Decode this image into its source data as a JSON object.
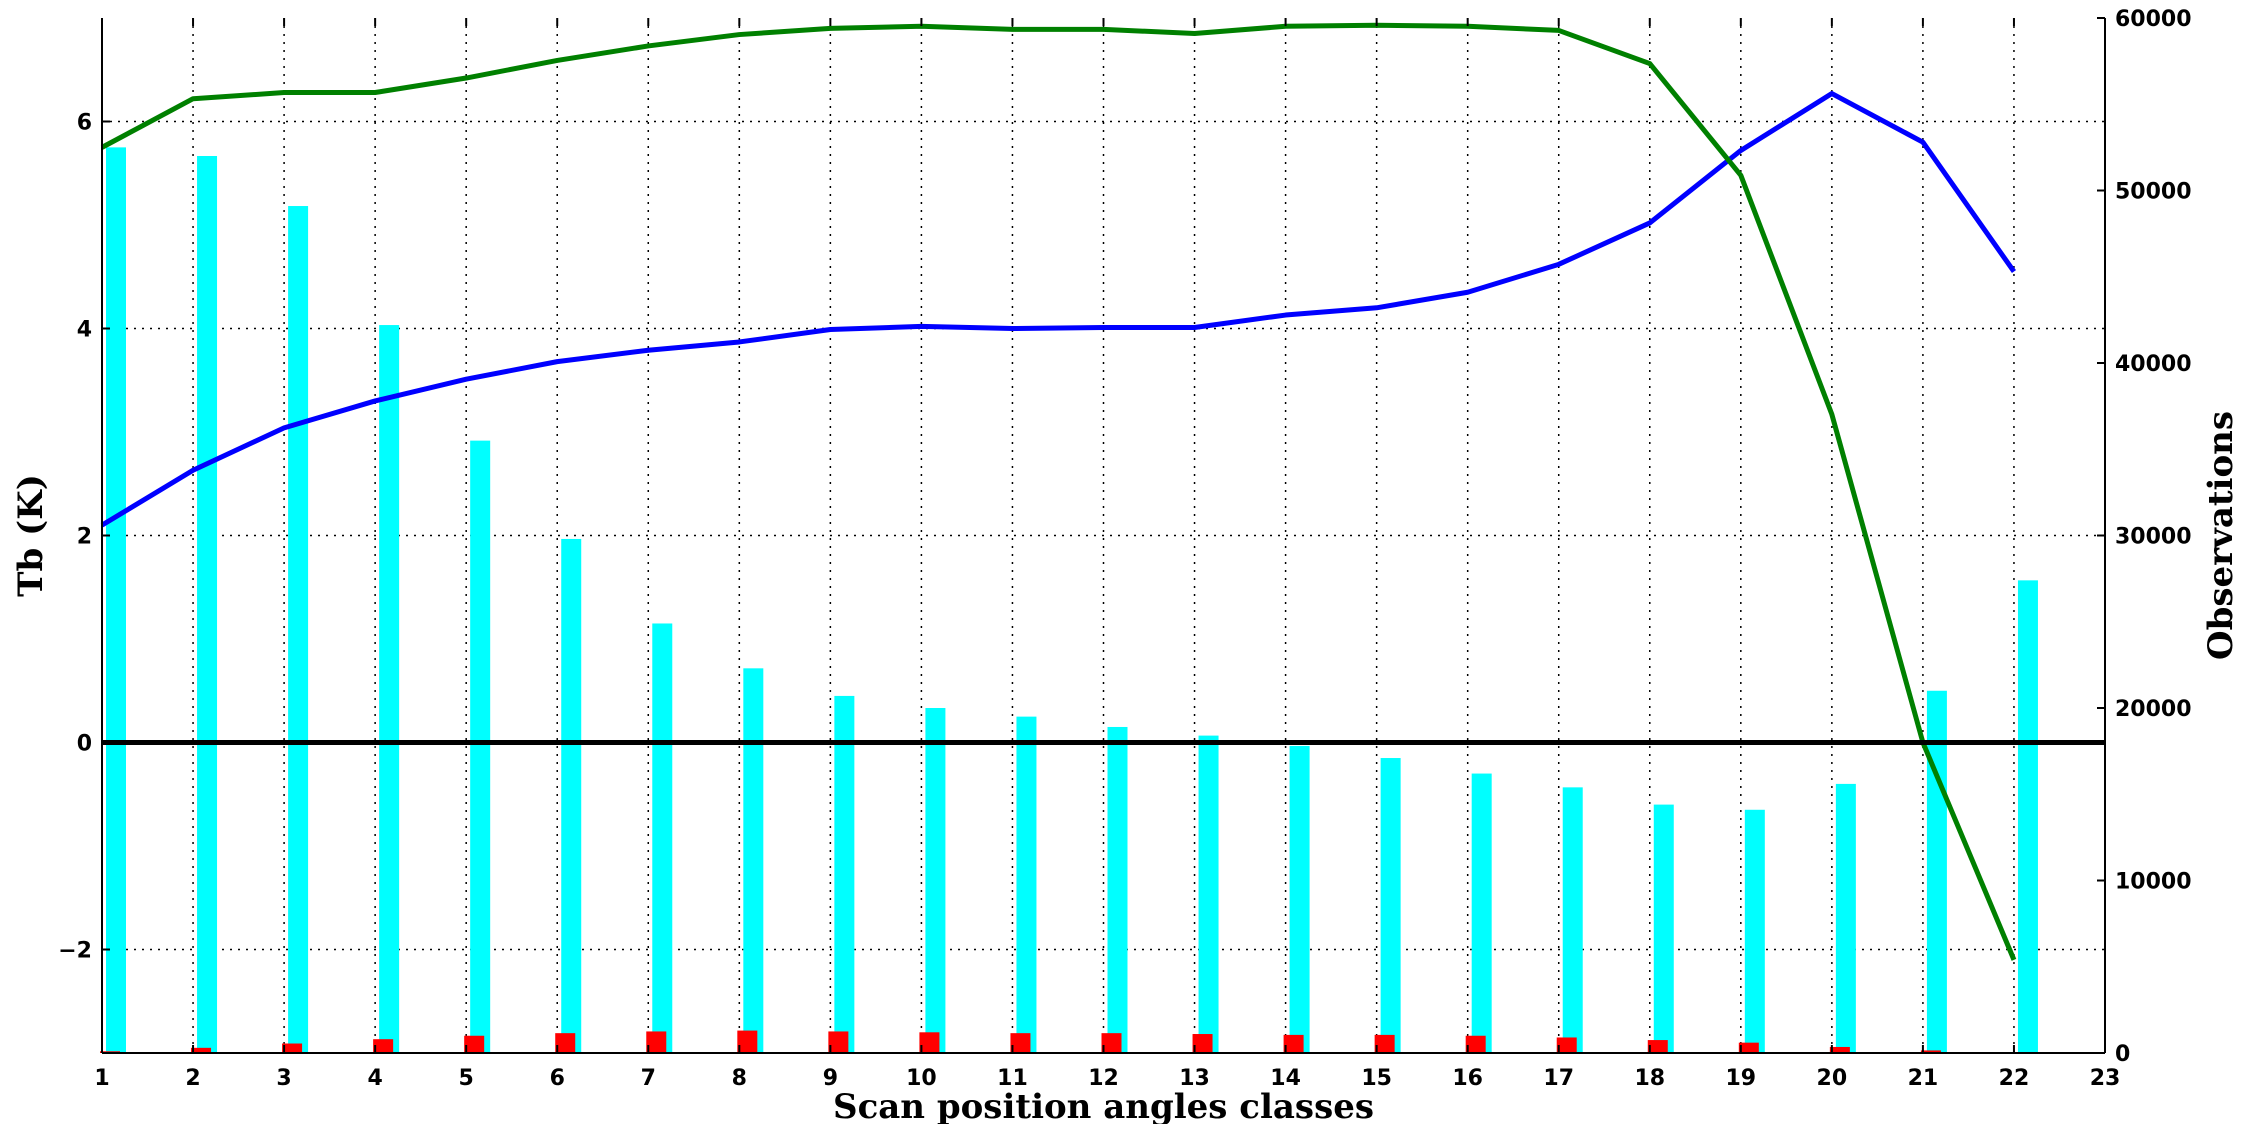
{
  "chart_data": {
    "type": "bar",
    "xlabel": "Scan position angles classes",
    "ylabel": "Tb (K)",
    "y2label": "Observations",
    "x_ticks": [
      "1",
      "2",
      "3",
      "4",
      "5",
      "6",
      "7",
      "8",
      "9",
      "10",
      "11",
      "12",
      "13",
      "14",
      "15",
      "16",
      "17",
      "18",
      "19",
      "20",
      "21",
      "22",
      "23"
    ],
    "xlim": [
      1,
      23
    ],
    "ylim": [
      -3,
      7
    ],
    "y_ticks": [
      -2,
      0,
      2,
      4,
      6
    ],
    "y_tick_labels": [
      "−2",
      "0",
      "2",
      "4",
      "6"
    ],
    "y2lim": [
      0,
      60000
    ],
    "y2_ticks": [
      0,
      10000,
      20000,
      30000,
      40000,
      50000,
      60000
    ],
    "y2_tick_labels": [
      "0",
      "10000",
      "20000",
      "30000",
      "40000",
      "50000",
      "60000"
    ],
    "grid": true,
    "zero_line": 0,
    "series": [
      {
        "kind": "line",
        "axis": "left",
        "color": "#0000ff",
        "x": [
          1,
          2,
          3,
          4,
          5,
          6,
          7,
          8,
          9,
          10,
          11,
          12,
          13,
          14,
          15,
          16,
          17,
          18,
          19,
          20,
          21,
          22
        ],
        "values": [
          2.1,
          2.63,
          3.04,
          3.3,
          3.51,
          3.68,
          3.79,
          3.87,
          3.99,
          4.02,
          4.0,
          4.01,
          4.01,
          4.13,
          4.2,
          4.35,
          4.62,
          5.02,
          5.72,
          6.27,
          5.8,
          4.55
        ]
      },
      {
        "kind": "line",
        "axis": "left",
        "color": "#008000",
        "x": [
          1,
          2,
          3,
          4,
          5,
          6,
          7,
          8,
          9,
          10,
          11,
          12,
          13,
          14,
          15,
          16,
          17,
          18,
          19,
          20,
          21,
          22
        ],
        "values": [
          5.75,
          6.22,
          6.28,
          6.28,
          6.42,
          6.59,
          6.73,
          6.84,
          6.9,
          6.92,
          6.89,
          6.89,
          6.85,
          6.92,
          6.93,
          6.92,
          6.88,
          6.56,
          5.48,
          3.17,
          0.0,
          -2.1
        ]
      },
      {
        "kind": "bar",
        "axis": "right",
        "color": "#00ffff",
        "x": [
          1,
          2,
          3,
          4,
          5,
          6,
          7,
          8,
          9,
          10,
          11,
          12,
          13,
          14,
          15,
          16,
          17,
          18,
          19,
          20,
          21,
          22
        ],
        "values": [
          52500,
          52000,
          49100,
          42200,
          35500,
          29800,
          24900,
          22300,
          20700,
          20000,
          19500,
          18900,
          18400,
          17800,
          17100,
          16200,
          15400,
          14400,
          14100,
          15600,
          21000,
          27400
        ]
      },
      {
        "kind": "bar",
        "axis": "right",
        "color": "#ff0000",
        "x": [
          1,
          2,
          3,
          4,
          5,
          6,
          7,
          8,
          9,
          10,
          11,
          12,
          13,
          14,
          15,
          16,
          17,
          18,
          19,
          20,
          21,
          22
        ],
        "values": [
          100,
          300,
          550,
          800,
          1000,
          1150,
          1250,
          1300,
          1250,
          1200,
          1150,
          1150,
          1100,
          1050,
          1050,
          1000,
          900,
          750,
          600,
          350,
          150,
          50
        ]
      }
    ]
  }
}
